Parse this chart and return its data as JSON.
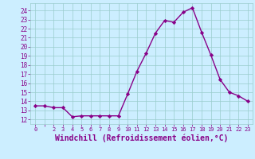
{
  "x": [
    0,
    1,
    2,
    3,
    4,
    5,
    6,
    7,
    8,
    9,
    10,
    11,
    12,
    13,
    14,
    15,
    16,
    17,
    18,
    19,
    20,
    21,
    22,
    23
  ],
  "y": [
    13.5,
    13.5,
    13.3,
    13.3,
    12.3,
    12.4,
    12.4,
    12.4,
    12.4,
    12.4,
    14.8,
    17.3,
    19.3,
    21.5,
    22.9,
    22.7,
    23.8,
    24.3,
    21.6,
    19.1,
    16.4,
    15.0,
    14.6,
    14.0
  ],
  "line_color": "#880088",
  "marker": "D",
  "marker_size": 2.2,
  "line_width": 1.0,
  "bg_color": "#cceeff",
  "grid_color": "#99cccc",
  "tick_color": "#880088",
  "xlabel": "Windchill (Refroidissement éolien,°C)",
  "xlabel_fontsize": 7,
  "ylabel_ticks": [
    12,
    13,
    14,
    15,
    16,
    17,
    18,
    19,
    20,
    21,
    22,
    23,
    24
  ],
  "ylim": [
    11.5,
    24.8
  ],
  "xlim": [
    -0.5,
    23.5
  ],
  "xtick_labels": [
    "0",
    "",
    "2",
    "3",
    "4",
    "5",
    "6",
    "7",
    "8",
    "9",
    "10",
    "11",
    "12",
    "13",
    "14",
    "15",
    "16",
    "17",
    "18",
    "19",
    "20",
    "21",
    "22",
    "23"
  ]
}
